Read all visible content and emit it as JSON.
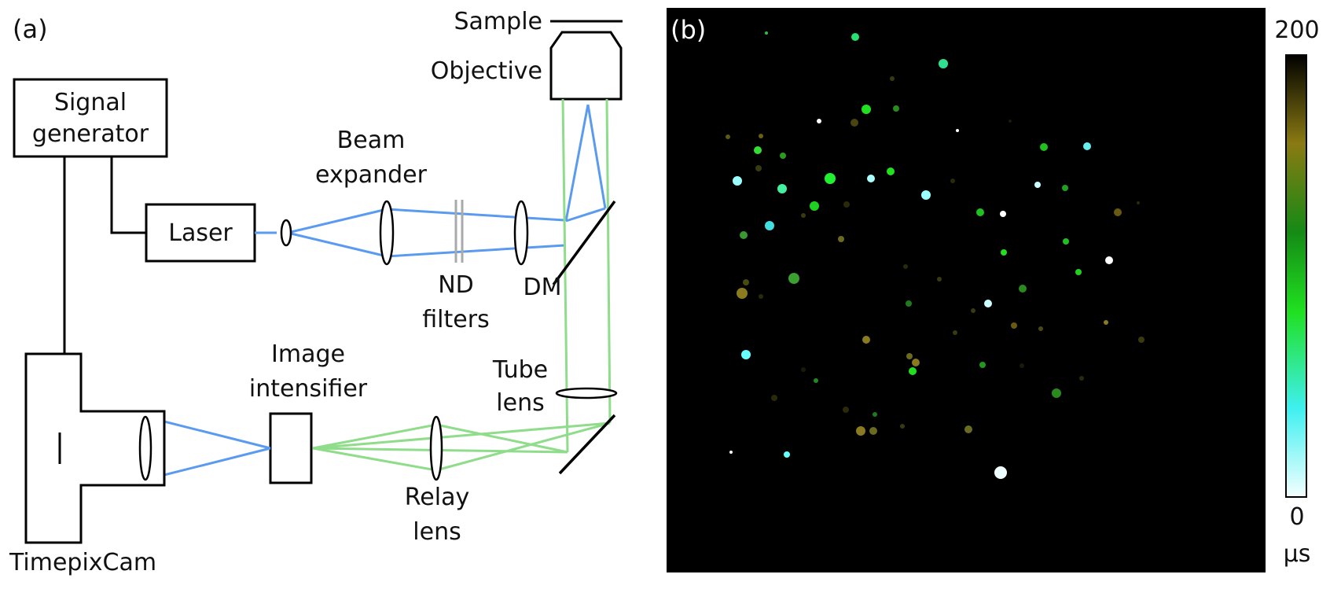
{
  "panel_a": {
    "label": "(a)",
    "components": {
      "sample": "Sample",
      "objective": "Objective",
      "signal_generator_line1": "Signal",
      "signal_generator_line2": "generator",
      "beam_expander_line1": "Beam",
      "beam_expander_line2": "expander",
      "laser": "Laser",
      "nd_filters_line1": "ND",
      "nd_filters_line2": "filters",
      "dm": "DM",
      "image_intensifier_line1": "Image",
      "image_intensifier_line2": "intensifier",
      "tube_lens_line1": "Tube",
      "tube_lens_line2": "lens",
      "relay_lens_line1": "Relay",
      "relay_lens_line2": "lens",
      "timepixcam": "TimepixCam"
    },
    "colors": {
      "excitation_beam": "#5b9bef",
      "emission_beam": "#8fdc8a",
      "outline": "#000000"
    }
  },
  "panel_b": {
    "label": "(b)",
    "colorbar": {
      "max_label": "200",
      "min_label": "0",
      "unit": "µs",
      "range": [
        0,
        200
      ],
      "stops": [
        "#f4ffff",
        "#3ff0f0",
        "#20e020",
        "#158a15",
        "#8a7a12",
        "#000000"
      ]
    },
    "background": "#000000"
  }
}
